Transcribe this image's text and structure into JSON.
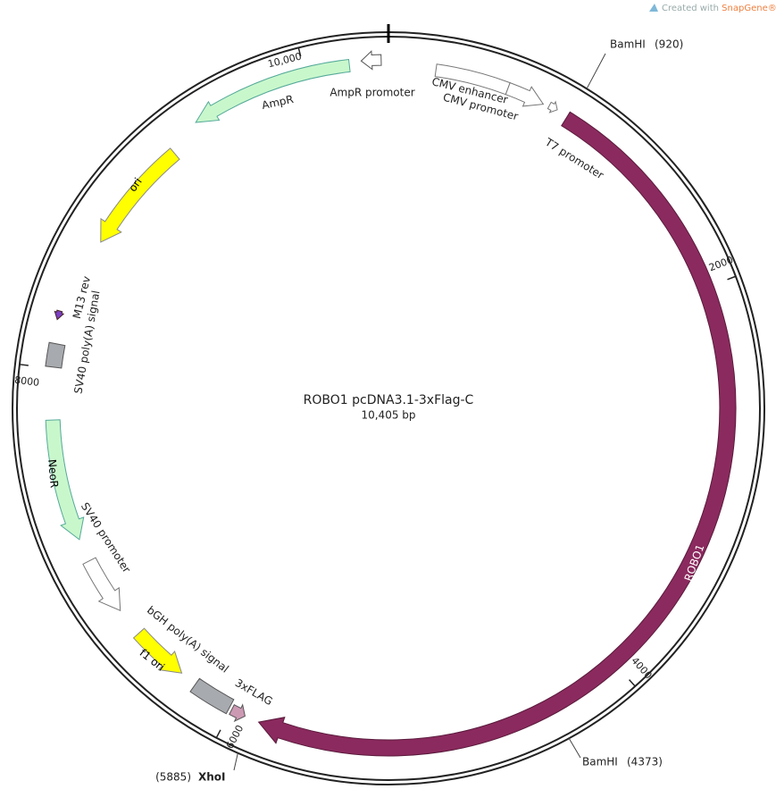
{
  "watermark": {
    "prefix": "Created with",
    "brand": "SnapGene®"
  },
  "plasmid": {
    "name": "ROBO1 pcDNA3.1-3xFlag-C",
    "size": "10,405 bp"
  },
  "ticks": [
    2000,
    4000,
    6000,
    8000,
    {
      "value": 10000,
      "label": "10,000"
    }
  ],
  "sites": [
    {
      "name": "BamHI",
      "position": {
        "value": 920,
        "label": "(920)"
      }
    },
    {
      "name": "BamHI",
      "position": {
        "value": 4373,
        "label": "(4373)"
      }
    },
    {
      "name": "XhoI",
      "position": {
        "value": 5885,
        "label": "(5885)"
      }
    }
  ],
  "features": [
    {
      "label": "ROBO1"
    },
    {
      "label": "CMV enhancer"
    },
    {
      "label": "CMV promoter"
    },
    {
      "label": "T7 promoter"
    },
    {
      "label": "AmpR promoter"
    },
    {
      "label": "AmpR"
    },
    {
      "label": "ori"
    },
    {
      "label": "M13 rev"
    },
    {
      "label": "SV40 poly(A) signal"
    },
    {
      "label": "NeoR"
    },
    {
      "label": "SV40 promoter"
    },
    {
      "label": "f1 ori"
    },
    {
      "label": "bGH poly(A) signal"
    },
    {
      "label": "3xFLAG"
    }
  ]
}
